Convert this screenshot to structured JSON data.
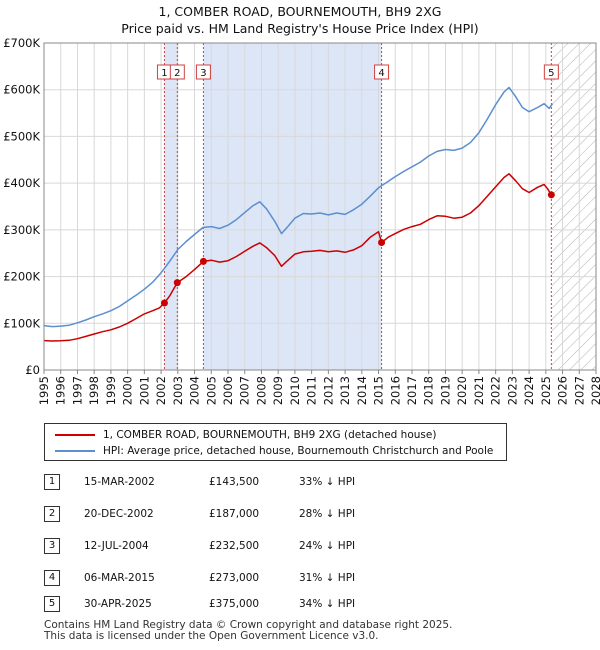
{
  "header": {
    "title_line1": "1, COMBER ROAD, BOURNEMOUTH, BH9 2XG",
    "title_line2": "Price paid vs. HM Land Registry's House Price Index (HPI)"
  },
  "colors": {
    "property": "#cc0000",
    "hpi": "#5b8fd0",
    "shade": "#dde6f6",
    "vline": "#d04040",
    "hatch": "#b0b0b0"
  },
  "chart_data": {
    "type": "line",
    "xlim": [
      1995,
      2028
    ],
    "ylim": [
      0,
      700000
    ],
    "x_ticks": [
      "1995",
      "1996",
      "1997",
      "1998",
      "1999",
      "2000",
      "2001",
      "2002",
      "2003",
      "2004",
      "2005",
      "2006",
      "2007",
      "2008",
      "2009",
      "2010",
      "2011",
      "2012",
      "2013",
      "2014",
      "2015",
      "2016",
      "2017",
      "2018",
      "2019",
      "2020",
      "2021",
      "2022",
      "2023",
      "2024",
      "2025",
      "2026",
      "2027",
      "2028"
    ],
    "y_ticks": [
      {
        "value": 0,
        "label": "£0"
      },
      {
        "value": 100000,
        "label": "£100K"
      },
      {
        "value": 200000,
        "label": "£200K"
      },
      {
        "value": 300000,
        "label": "£300K"
      },
      {
        "value": 400000,
        "label": "£400K"
      },
      {
        "value": 500000,
        "label": "£500K"
      },
      {
        "value": 600000,
        "label": "£600K"
      },
      {
        "value": 700000,
        "label": "£700K"
      }
    ],
    "shaded_spans": [
      [
        2002.2,
        2002.97
      ],
      [
        2004.53,
        2015.18
      ]
    ],
    "future_start": 2025.33,
    "series": [
      {
        "name": "1, COMBER ROAD, BOURNEMOUTH, BH9 2XG (detached house)",
        "key": "property",
        "points": [
          [
            1995.0,
            63000
          ],
          [
            1995.5,
            62000
          ],
          [
            1996.0,
            62500
          ],
          [
            1996.5,
            63500
          ],
          [
            1997.0,
            67000
          ],
          [
            1997.5,
            72000
          ],
          [
            1998.0,
            77000
          ],
          [
            1998.5,
            82000
          ],
          [
            1999.0,
            86000
          ],
          [
            1999.5,
            92000
          ],
          [
            2000.0,
            100000
          ],
          [
            2000.5,
            110000
          ],
          [
            2001.0,
            120000
          ],
          [
            2001.5,
            127000
          ],
          [
            2001.9,
            133000
          ],
          [
            2002.2,
            143500
          ],
          [
            2002.5,
            158000
          ],
          [
            2002.97,
            187000
          ],
          [
            2003.5,
            200000
          ],
          [
            2004.0,
            215000
          ],
          [
            2004.53,
            232500
          ],
          [
            2005.0,
            235000
          ],
          [
            2005.5,
            231000
          ],
          [
            2006.0,
            234000
          ],
          [
            2006.5,
            243000
          ],
          [
            2007.0,
            254000
          ],
          [
            2007.5,
            265000
          ],
          [
            2007.9,
            272000
          ],
          [
            2008.3,
            262000
          ],
          [
            2008.8,
            245000
          ],
          [
            2009.2,
            222000
          ],
          [
            2009.5,
            232000
          ],
          [
            2010.0,
            248000
          ],
          [
            2010.5,
            253000
          ],
          [
            2011.0,
            254000
          ],
          [
            2011.5,
            256000
          ],
          [
            2012.0,
            253000
          ],
          [
            2012.5,
            255000
          ],
          [
            2013.0,
            252000
          ],
          [
            2013.5,
            257000
          ],
          [
            2014.0,
            266000
          ],
          [
            2014.5,
            284000
          ],
          [
            2015.0,
            296000
          ],
          [
            2015.18,
            273000
          ],
          [
            2015.6,
            285000
          ],
          [
            2016.0,
            292000
          ],
          [
            2016.5,
            301000
          ],
          [
            2017.0,
            307000
          ],
          [
            2017.5,
            312000
          ],
          [
            2018.0,
            322000
          ],
          [
            2018.5,
            330000
          ],
          [
            2019.0,
            329000
          ],
          [
            2019.5,
            325000
          ],
          [
            2020.0,
            327000
          ],
          [
            2020.5,
            336000
          ],
          [
            2021.0,
            352000
          ],
          [
            2021.5,
            372000
          ],
          [
            2022.0,
            392000
          ],
          [
            2022.5,
            412000
          ],
          [
            2022.8,
            420000
          ],
          [
            2023.2,
            405000
          ],
          [
            2023.6,
            388000
          ],
          [
            2024.0,
            380000
          ],
          [
            2024.5,
            391000
          ],
          [
            2024.9,
            397000
          ],
          [
            2025.1,
            388000
          ],
          [
            2025.33,
            375000
          ]
        ]
      },
      {
        "name": "HPI: Average price, detached house, Bournemouth Christchurch and Poole",
        "key": "hpi",
        "points": [
          [
            1995.0,
            95000
          ],
          [
            1995.5,
            93000
          ],
          [
            1996.0,
            94000
          ],
          [
            1996.5,
            96000
          ],
          [
            1997.0,
            101000
          ],
          [
            1997.5,
            107000
          ],
          [
            1998.0,
            114000
          ],
          [
            1998.5,
            120000
          ],
          [
            1999.0,
            127000
          ],
          [
            1999.5,
            136000
          ],
          [
            2000.0,
            148000
          ],
          [
            2000.5,
            160000
          ],
          [
            2001.0,
            173000
          ],
          [
            2001.5,
            188000
          ],
          [
            2002.0,
            208000
          ],
          [
            2002.5,
            232000
          ],
          [
            2003.0,
            258000
          ],
          [
            2003.5,
            275000
          ],
          [
            2004.0,
            290000
          ],
          [
            2004.5,
            305000
          ],
          [
            2005.0,
            307000
          ],
          [
            2005.5,
            303000
          ],
          [
            2006.0,
            310000
          ],
          [
            2006.5,
            322000
          ],
          [
            2007.0,
            337000
          ],
          [
            2007.5,
            352000
          ],
          [
            2007.9,
            360000
          ],
          [
            2008.3,
            345000
          ],
          [
            2008.8,
            318000
          ],
          [
            2009.2,
            292000
          ],
          [
            2009.6,
            308000
          ],
          [
            2010.0,
            325000
          ],
          [
            2010.5,
            335000
          ],
          [
            2011.0,
            334000
          ],
          [
            2011.5,
            336000
          ],
          [
            2012.0,
            332000
          ],
          [
            2012.5,
            336000
          ],
          [
            2013.0,
            333000
          ],
          [
            2013.5,
            343000
          ],
          [
            2014.0,
            355000
          ],
          [
            2014.5,
            372000
          ],
          [
            2015.0,
            390000
          ],
          [
            2015.5,
            402000
          ],
          [
            2016.0,
            414000
          ],
          [
            2016.5,
            425000
          ],
          [
            2017.0,
            435000
          ],
          [
            2017.5,
            445000
          ],
          [
            2018.0,
            458000
          ],
          [
            2018.5,
            468000
          ],
          [
            2019.0,
            472000
          ],
          [
            2019.5,
            470000
          ],
          [
            2020.0,
            475000
          ],
          [
            2020.5,
            487000
          ],
          [
            2021.0,
            508000
          ],
          [
            2021.5,
            537000
          ],
          [
            2022.0,
            568000
          ],
          [
            2022.5,
            595000
          ],
          [
            2022.8,
            605000
          ],
          [
            2023.2,
            585000
          ],
          [
            2023.6,
            562000
          ],
          [
            2024.0,
            553000
          ],
          [
            2024.5,
            562000
          ],
          [
            2024.9,
            570000
          ],
          [
            2025.2,
            560000
          ],
          [
            2025.4,
            570000
          ]
        ]
      }
    ],
    "sales": [
      {
        "id": "1",
        "x": 2002.2,
        "price": 143500
      },
      {
        "id": "2",
        "x": 2002.97,
        "price": 187000
      },
      {
        "id": "3",
        "x": 2004.53,
        "price": 232500
      },
      {
        "id": "4",
        "x": 2015.18,
        "price": 273000
      },
      {
        "id": "5",
        "x": 2025.33,
        "price": 375000
      }
    ]
  },
  "legend": {
    "property_label": "1, COMBER ROAD, BOURNEMOUTH, BH9 2XG (detached house)",
    "hpi_label": "HPI: Average price, detached house, Bournemouth Christchurch and Poole"
  },
  "sales_table": [
    {
      "num": "1",
      "date": "15-MAR-2002",
      "price": "£143,500",
      "hpi": "33% ↓ HPI"
    },
    {
      "num": "2",
      "date": "20-DEC-2002",
      "price": "£187,000",
      "hpi": "28% ↓ HPI"
    },
    {
      "num": "3",
      "date": "12-JUL-2004",
      "price": "£232,500",
      "hpi": "24% ↓ HPI"
    },
    {
      "num": "4",
      "date": "06-MAR-2015",
      "price": "£273,000",
      "hpi": "31% ↓ HPI"
    },
    {
      "num": "5",
      "date": "30-APR-2025",
      "price": "£375,000",
      "hpi": "34% ↓ HPI"
    }
  ],
  "footer": {
    "line1": "Contains HM Land Registry data © Crown copyright and database right 2025.",
    "line2": "This data is licensed under the Open Government Licence v3.0."
  }
}
